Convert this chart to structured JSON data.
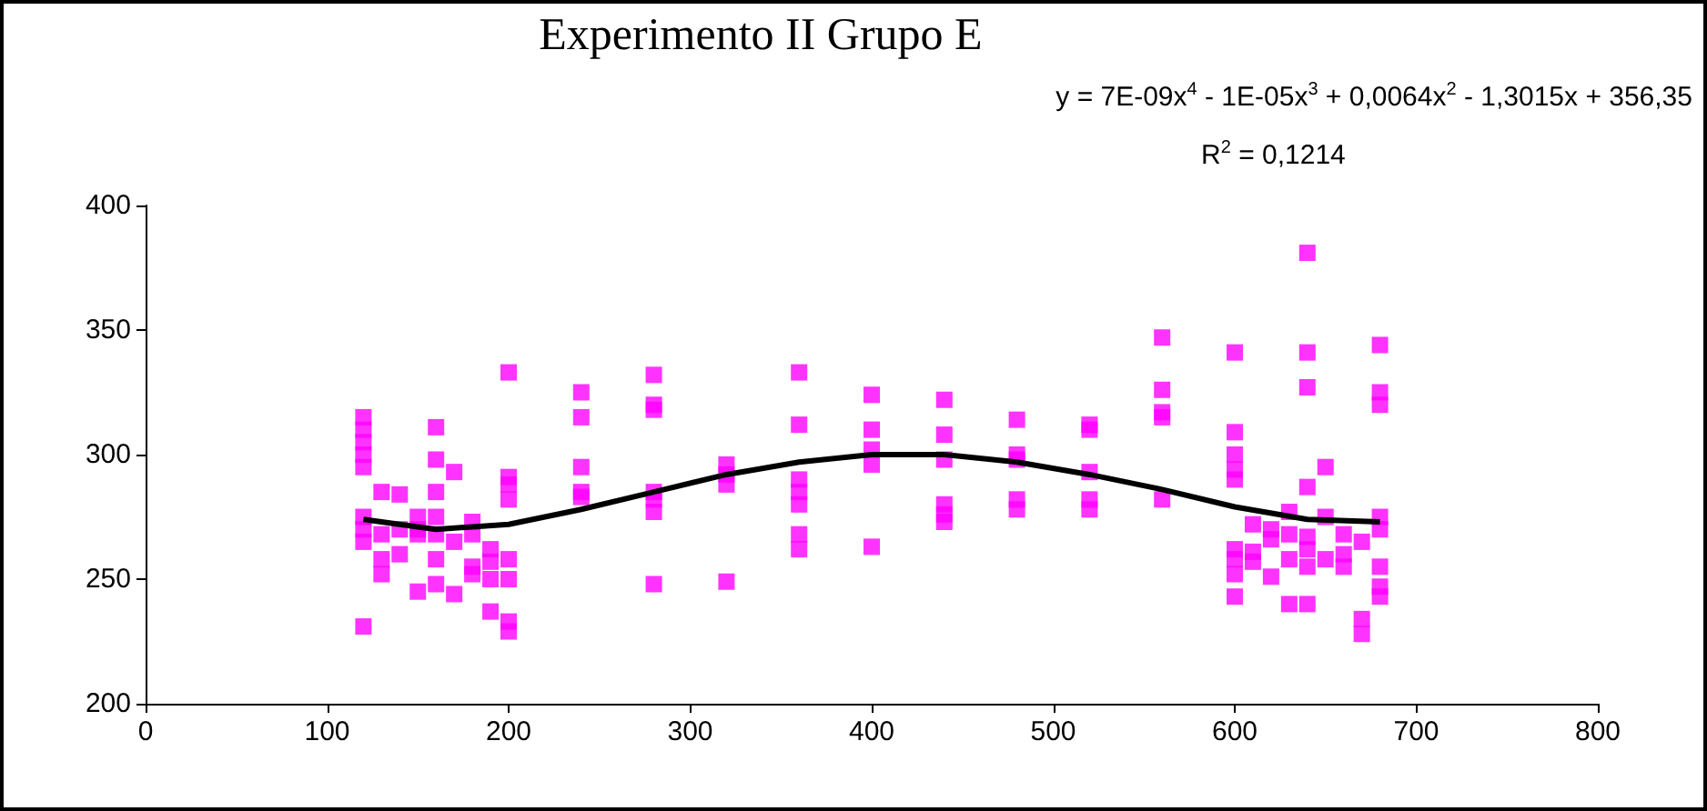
{
  "chart_data": {
    "type": "scatter",
    "title": "Experimento II Grupo E",
    "annotations": [
      "y = 7E-09x$^{4}$ - 1E-05x$^{3}$ + 0,0064x$^{2}$ - 1,3015x + 356,35",
      "R$^{2}$ = 0,1214"
    ],
    "xlim": [
      0,
      800
    ],
    "xticks": [
      0,
      100,
      200,
      300,
      400,
      500,
      600,
      700,
      800
    ],
    "ylim": [
      200,
      400
    ],
    "yticks": [
      200,
      250,
      300,
      350,
      400
    ],
    "grid": false,
    "marker": "square",
    "series": [
      {
        "color": "#ff00ff",
        "x": [
          120,
          120,
          120,
          120,
          120,
          120,
          120,
          120,
          120,
          130,
          130,
          130,
          130,
          140,
          140,
          140,
          150,
          150,
          150,
          150,
          160,
          160,
          160,
          160,
          160,
          160,
          160,
          170,
          170,
          170,
          180,
          180,
          180,
          180,
          190,
          190,
          190,
          190,
          200,
          200,
          200,
          200,
          200,
          200,
          200,
          200,
          240,
          240,
          240,
          240,
          240,
          280,
          280,
          280,
          280,
          280,
          280,
          280,
          320,
          320,
          320,
          320,
          360,
          360,
          360,
          360,
          360,
          360,
          360,
          400,
          400,
          400,
          400,
          400,
          440,
          440,
          440,
          440,
          440,
          440,
          480,
          480,
          480,
          480,
          480,
          520,
          520,
          520,
          520,
          520,
          560,
          560,
          560,
          560,
          560,
          600,
          600,
          600,
          600,
          600,
          600,
          600,
          600,
          600,
          610,
          610,
          610,
          620,
          620,
          620,
          630,
          630,
          630,
          630,
          640,
          640,
          640,
          640,
          640,
          640,
          640,
          640,
          650,
          650,
          650,
          660,
          660,
          660,
          670,
          670,
          670,
          680,
          680,
          680,
          680,
          680,
          680,
          680,
          680
        ],
        "values": [
          315,
          310,
          305,
          300,
          295,
          275,
          270,
          265,
          231,
          285,
          268,
          258,
          252,
          284,
          270,
          260,
          275,
          270,
          268,
          245,
          311,
          298,
          285,
          275,
          268,
          258,
          248,
          293,
          265,
          244,
          273,
          268,
          255,
          252,
          262,
          257,
          250,
          237,
          333,
          291,
          288,
          282,
          258,
          250,
          233,
          229,
          325,
          315,
          295,
          285,
          283,
          332,
          320,
          318,
          285,
          282,
          277,
          248,
          296,
          292,
          288,
          249,
          333,
          312,
          290,
          285,
          280,
          268,
          262,
          324,
          310,
          302,
          296,
          263,
          322,
          308,
          298,
          280,
          276,
          273,
          314,
          300,
          298,
          282,
          278,
          312,
          310,
          293,
          282,
          278,
          347,
          326,
          317,
          315,
          282,
          341,
          309,
          300,
          294,
          290,
          262,
          258,
          252,
          243,
          272,
          261,
          257,
          270,
          266,
          251,
          277,
          268,
          258,
          240,
          381,
          341,
          327,
          287,
          267,
          262,
          255,
          240,
          295,
          275,
          258,
          268,
          260,
          255,
          265,
          234,
          228,
          344,
          325,
          320,
          275,
          270,
          255,
          247,
          243
        ]
      },
      {
        "type": "line",
        "color": "#000000",
        "marker": "none",
        "line_style": "solid",
        "x": [
          120,
          160,
          200,
          240,
          280,
          320,
          360,
          400,
          440,
          480,
          520,
          560,
          600,
          640,
          680
        ],
        "values": [
          274,
          270,
          272,
          278,
          285,
          292,
          297,
          300,
          300,
          297,
          292,
          286,
          279,
          274,
          273
        ]
      }
    ]
  }
}
